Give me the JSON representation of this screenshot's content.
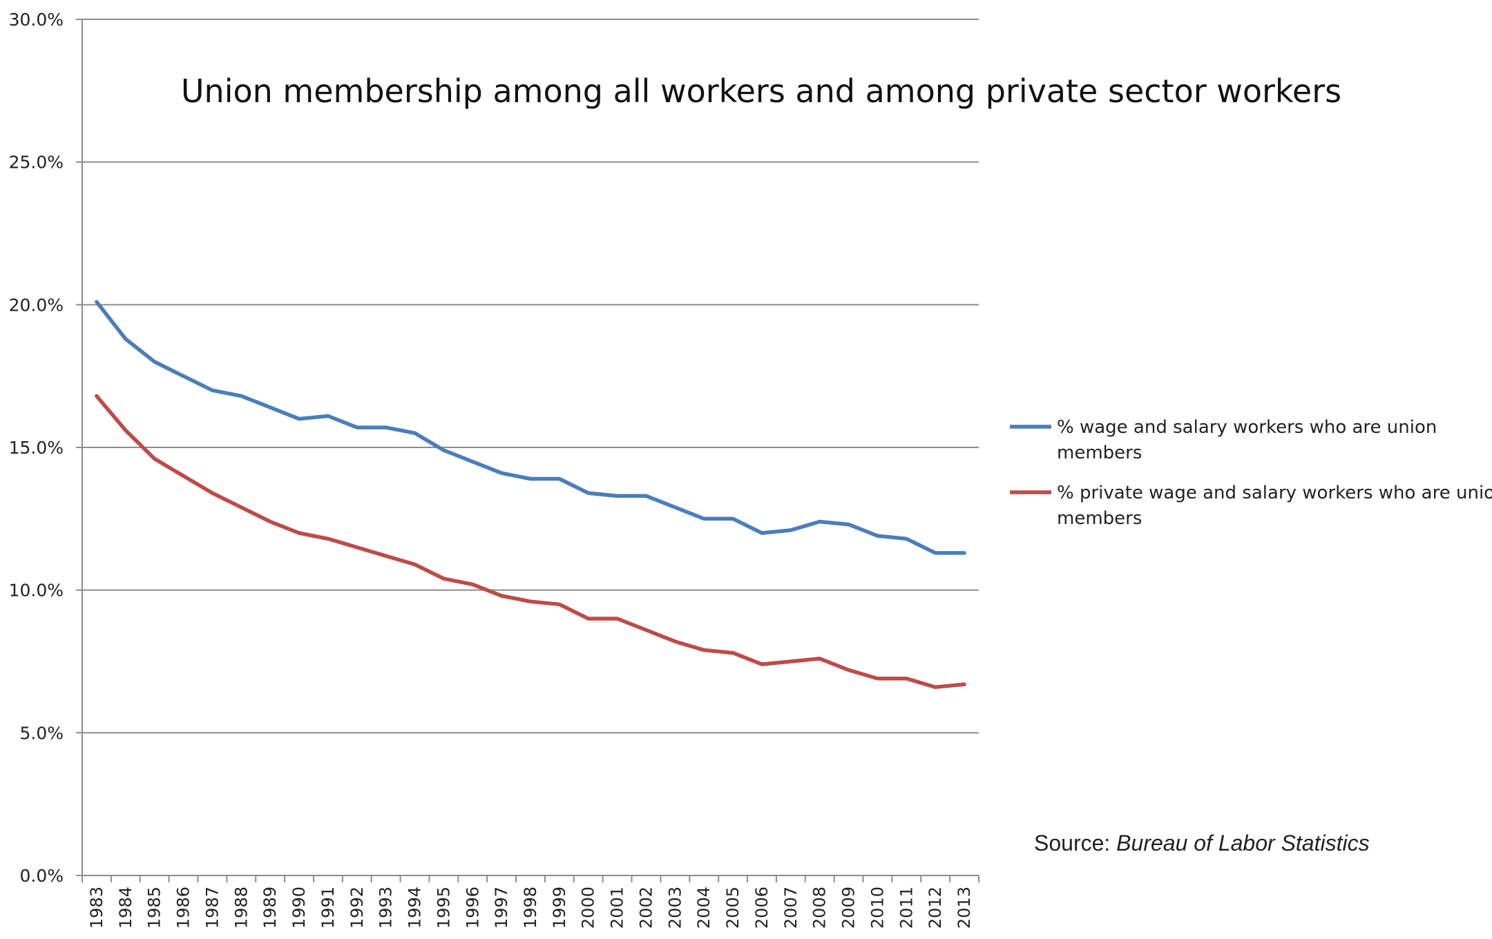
{
  "chart_data": {
    "type": "line",
    "title": "Union membership among all workers and among private sector workers",
    "xlabel": "",
    "ylabel": "",
    "ylim": [
      0,
      30
    ],
    "y_ticks": [
      "0.0%",
      "5.0%",
      "10.0%",
      "15.0%",
      "20.0%",
      "25.0%",
      "30.0%"
    ],
    "y_tick_values": [
      0,
      5,
      10,
      15,
      20,
      25,
      30
    ],
    "grid": true,
    "legend_position": "right",
    "categories": [
      "1983",
      "1984",
      "1985",
      "1986",
      "1987",
      "1988",
      "1989",
      "1990",
      "1991",
      "1992",
      "1993",
      "1994",
      "1995",
      "1996",
      "1997",
      "1998",
      "1999",
      "2000",
      "2001",
      "2002",
      "2003",
      "2004",
      "2005",
      "2006",
      "2007",
      "2008",
      "2009",
      "2010",
      "2011",
      "2012",
      "2013"
    ],
    "series": [
      {
        "name": "% wage and salary workers who are union members",
        "legend_lines": [
          "% wage and salary workers who are union",
          "members"
        ],
        "color": "#4a7ebb",
        "values": [
          20.1,
          18.8,
          18.0,
          17.5,
          17.0,
          16.8,
          16.4,
          16.0,
          16.1,
          15.7,
          15.7,
          15.5,
          14.9,
          14.5,
          14.1,
          13.9,
          13.9,
          13.4,
          13.3,
          13.3,
          12.9,
          12.5,
          12.5,
          12.0,
          12.1,
          12.4,
          12.3,
          11.9,
          11.8,
          11.3,
          11.3
        ]
      },
      {
        "name": "% private wage and salary workers who are union members",
        "legend_lines": [
          "% private wage and salary workers who are union",
          "members"
        ],
        "color": "#be4b48",
        "values": [
          16.8,
          15.6,
          14.6,
          14.0,
          13.4,
          12.9,
          12.4,
          12.0,
          11.8,
          11.5,
          11.2,
          10.9,
          10.4,
          10.2,
          9.8,
          9.6,
          9.5,
          9.0,
          9.0,
          8.6,
          8.2,
          7.9,
          7.8,
          7.4,
          7.5,
          7.6,
          7.2,
          6.9,
          6.9,
          6.6,
          6.7
        ]
      }
    ],
    "source_prefix": "Source: ",
    "source_name": "Bureau of Labor Statistics"
  }
}
